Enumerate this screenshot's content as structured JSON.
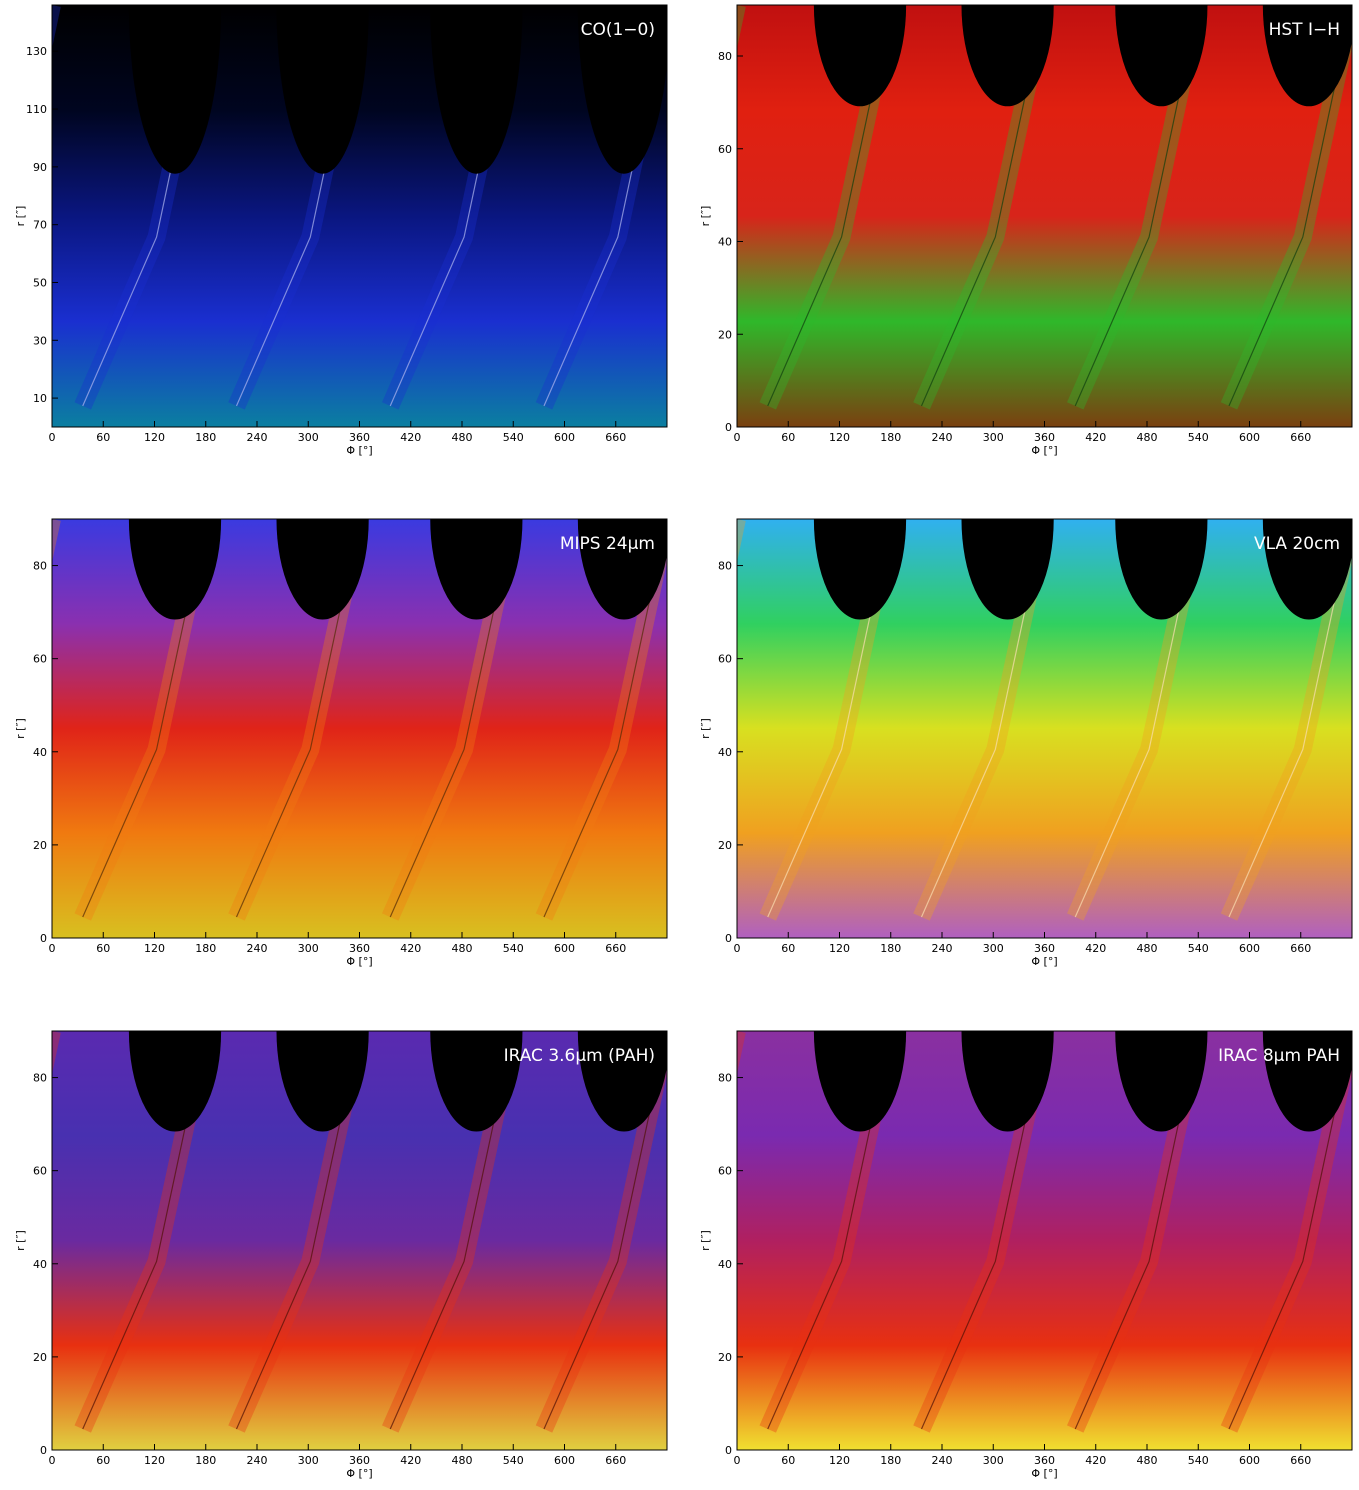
{
  "chart_data": [
    {
      "type": "image",
      "title": "CO(1−0)",
      "xlabel": "Φ [°]",
      "ylabel": "r [″]",
      "xlim": [
        0,
        720
      ],
      "ylim": [
        0,
        146
      ],
      "xticks": [
        0,
        60,
        120,
        180,
        240,
        300,
        360,
        420,
        480,
        540,
        600,
        660
      ],
      "yticks": [
        10,
        30,
        50,
        70,
        90,
        110,
        130
      ],
      "colormap": [
        "#0b7fa0",
        "#1a2fd0",
        "#0a1680",
        "#000520",
        "#000000"
      ],
      "title_color": "#ffffff"
    },
    {
      "type": "image",
      "title": "HST I−H",
      "xlabel": "Φ [°]",
      "ylabel": "r [″]",
      "xlim": [
        0,
        720
      ],
      "ylim": [
        0,
        91
      ],
      "xticks": [
        0,
        60,
        120,
        180,
        240,
        300,
        360,
        420,
        480,
        540,
        600,
        660
      ],
      "yticks": [
        0,
        20,
        40,
        60,
        80
      ],
      "colormap": [
        "#7a4010",
        "#2fb82a",
        "#d8241a",
        "#e02010",
        "#c01010"
      ],
      "title_color": "#ffffff"
    },
    {
      "type": "image",
      "title": "MIPS 24μm",
      "xlabel": "Φ [°]",
      "ylabel": "r [″]",
      "xlim": [
        0,
        720
      ],
      "ylim": [
        0,
        90
      ],
      "xticks": [
        0,
        60,
        120,
        180,
        240,
        300,
        360,
        420,
        480,
        540,
        600,
        660
      ],
      "yticks": [
        0,
        20,
        40,
        60,
        80
      ],
      "colormap": [
        "#d8c020",
        "#f07a10",
        "#e02418",
        "#8a30b0",
        "#3a3ae0"
      ],
      "title_color": "#ffffff"
    },
    {
      "type": "image",
      "title": "VLA 20cm",
      "xlabel": "Φ [°]",
      "ylabel": "r [″]",
      "xlim": [
        0,
        720
      ],
      "ylim": [
        0,
        90
      ],
      "xticks": [
        0,
        60,
        120,
        180,
        240,
        300,
        360,
        420,
        480,
        540,
        600,
        660
      ],
      "yticks": [
        0,
        20,
        40,
        60,
        80
      ],
      "colormap": [
        "#b060c0",
        "#f0a020",
        "#d8e020",
        "#30d060",
        "#30b0f0"
      ],
      "title_color": "#ffffff"
    },
    {
      "type": "image",
      "title": "IRAC 3.6μm (PAH)",
      "xlabel": "Φ [°]",
      "ylabel": "r [″]",
      "xlim": [
        0,
        720
      ],
      "ylim": [
        0,
        90
      ],
      "xticks": [
        0,
        60,
        120,
        180,
        240,
        300,
        360,
        420,
        480,
        540,
        600,
        660
      ],
      "yticks": [
        0,
        20,
        40,
        60,
        80
      ],
      "colormap": [
        "#e0d040",
        "#e83010",
        "#6a2aa0",
        "#4830b0",
        "#5a2ab0"
      ],
      "title_color": "#ffffff"
    },
    {
      "type": "image",
      "title": "IRAC 8μm PAH",
      "xlabel": "Φ [°]",
      "ylabel": "r [″]",
      "xlim": [
        0,
        720
      ],
      "ylim": [
        0,
        90
      ],
      "xticks": [
        0,
        60,
        120,
        180,
        240,
        300,
        360,
        420,
        480,
        540,
        600,
        660
      ],
      "yticks": [
        0,
        20,
        40,
        60,
        80
      ],
      "colormap": [
        "#f0e030",
        "#e83010",
        "#b02060",
        "#7a2ab0",
        "#8a30a0"
      ],
      "title_color": "#ffffff"
    }
  ]
}
